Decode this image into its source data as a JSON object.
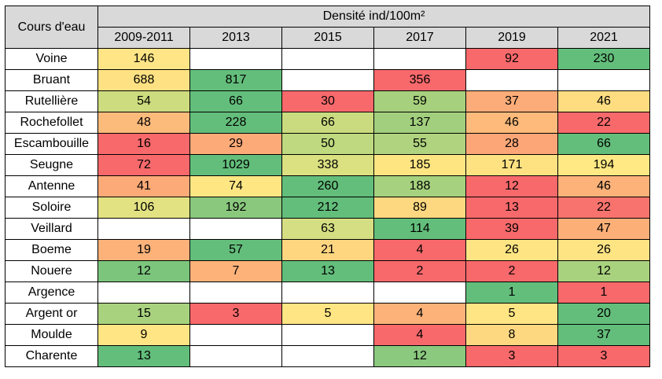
{
  "chart_data": {
    "type": "table",
    "row_header": "Cours d'eau",
    "group_header": "Densité ind/100m²",
    "columns": [
      "2009-2011",
      "2013",
      "2015",
      "2017",
      "2019",
      "2021"
    ],
    "rows": [
      {
        "name": "Voine",
        "values": [
          146,
          null,
          null,
          null,
          92,
          230
        ],
        "colors": [
          "#ffe585",
          "#ffffff",
          "#ffffff",
          "#ffffff",
          "#f8696b",
          "#63be7b"
        ]
      },
      {
        "name": "Bruant",
        "values": [
          688,
          817,
          null,
          356,
          null,
          null
        ],
        "colors": [
          "#fee182",
          "#63be7b",
          "#ffffff",
          "#f8696b",
          "#ffffff",
          "#ffffff"
        ]
      },
      {
        "name": "Rutellière",
        "values": [
          54,
          66,
          30,
          59,
          37,
          46
        ],
        "colors": [
          "#cddc7e",
          "#63be7b",
          "#f8696b",
          "#a6d07d",
          "#fcac78",
          "#fedd81"
        ]
      },
      {
        "name": "Rochefollet",
        "values": [
          48,
          228,
          66,
          137,
          46,
          22
        ],
        "colors": [
          "#fdbb7b",
          "#63be7b",
          "#cadb7f",
          "#a2cf7e",
          "#fdba7a",
          "#f8696b"
        ]
      },
      {
        "name": "Escambouille",
        "values": [
          16,
          29,
          50,
          55,
          28,
          66
        ],
        "colors": [
          "#f8696b",
          "#fcaa77",
          "#bed97f",
          "#b0d37f",
          "#fca677",
          "#63be7b"
        ]
      },
      {
        "name": "Seugne",
        "values": [
          72,
          1029,
          338,
          185,
          171,
          194
        ],
        "colors": [
          "#f8696b",
          "#63be7b",
          "#dbe081",
          "#fee582",
          "#fee282",
          "#ffe984"
        ]
      },
      {
        "name": "Antenne",
        "values": [
          41,
          74,
          260,
          188,
          12,
          46
        ],
        "colors": [
          "#fcaa77",
          "#fee783",
          "#63be7b",
          "#a6d17e",
          "#f8696b",
          "#fcb279"
        ]
      },
      {
        "name": "Soloire",
        "values": [
          106,
          192,
          212,
          89,
          13,
          22
        ],
        "colors": [
          "#e3e283",
          "#8ac87d",
          "#63be7b",
          "#fed880",
          "#f8696b",
          "#f8736d"
        ]
      },
      {
        "name": "Veillard",
        "values": [
          null,
          null,
          63,
          114,
          39,
          47
        ],
        "colors": [
          "#ffffff",
          "#ffffff",
          "#d5de82",
          "#63be7b",
          "#f8696b",
          "#fcb078"
        ]
      },
      {
        "name": "Boeme",
        "values": [
          19,
          57,
          21,
          4,
          26,
          26
        ],
        "colors": [
          "#fcb279",
          "#63be7b",
          "#fed680",
          "#f8696b",
          "#fee483",
          "#fee483"
        ]
      },
      {
        "name": "Nouere",
        "values": [
          12,
          7,
          13,
          2,
          2,
          12
        ],
        "colors": [
          "#7cc57d",
          "#fcb279",
          "#63be7b",
          "#f8696b",
          "#f8696b",
          "#a9d27f"
        ]
      },
      {
        "name": "Argence",
        "values": [
          null,
          null,
          null,
          null,
          1,
          1
        ],
        "colors": [
          "#ffffff",
          "#ffffff",
          "#ffffff",
          "#ffffff",
          "#63be7b",
          "#f8696b"
        ]
      },
      {
        "name": "Argent or",
        "values": [
          15,
          3,
          5,
          4,
          5,
          20
        ],
        "colors": [
          "#a9d27f",
          "#f8696b",
          "#ffe583",
          "#fcb279",
          "#ffe583",
          "#63be7b"
        ]
      },
      {
        "name": "Moulde",
        "values": [
          9,
          null,
          null,
          4,
          8,
          37
        ],
        "colors": [
          "#ffe583",
          "#ffffff",
          "#ffffff",
          "#f8696b",
          "#fed880",
          "#63be7b"
        ]
      },
      {
        "name": "Charente",
        "values": [
          13,
          null,
          null,
          12,
          3,
          3
        ],
        "colors": [
          "#63be7b",
          "#ffffff",
          "#ffffff",
          "#8bc97e",
          "#f8696b",
          "#f8696b"
        ]
      }
    ]
  }
}
